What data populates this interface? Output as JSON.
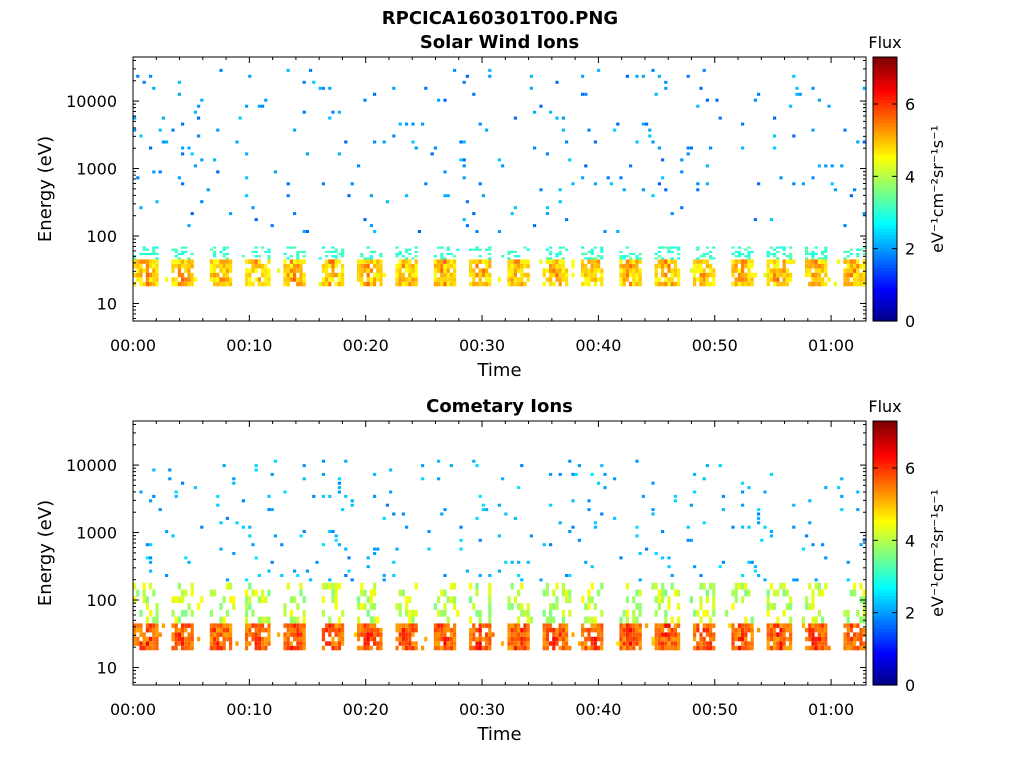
{
  "figure": {
    "title": "RPCICA160301T00.PNG"
  },
  "colormap": {
    "name": "jet",
    "stops": [
      "#00007f",
      "#0000ff",
      "#007fff",
      "#00ffff",
      "#7fff7f",
      "#ffff00",
      "#ff7f00",
      "#ff0000",
      "#7f0000"
    ]
  },
  "chart_data": [
    {
      "type": "heatmap",
      "title": "Solar Wind Ions",
      "xlabel": "Time",
      "ylabel": "Energy (eV)",
      "x_ticks": [
        "00:00",
        "00:10",
        "00:20",
        "00:30",
        "00:40",
        "00:50",
        "01:00"
      ],
      "x_tick_minutes": [
        0,
        10,
        20,
        30,
        40,
        50,
        60
      ],
      "xlim_minutes": [
        0,
        63
      ],
      "y_scale": "log",
      "y_ticks": [
        "10",
        "100",
        "1000",
        "10000"
      ],
      "y_tick_values": [
        10,
        100,
        1000,
        10000
      ],
      "ylim": [
        5.5,
        45000
      ],
      "colorbar": {
        "title": "Flux",
        "label": "eV⁻¹cm⁻²sr⁻¹s⁻¹",
        "ticks": [
          "0",
          "2",
          "4",
          "6"
        ],
        "range": [
          0,
          7.3
        ]
      },
      "sweep_period_minutes": 3.2,
      "bands": [
        {
          "energy_low": 18,
          "energy_high": 45,
          "flux_typical": 4.5,
          "flux_peak": 5.8,
          "description": "main solar wind band, periodic bursts"
        },
        {
          "energy_low": 45,
          "energy_high": 70,
          "flux_typical": 2.8,
          "flux_peak": 3.4
        },
        {
          "energy_low": 100,
          "energy_high": 30000,
          "flux_typical": 1.6,
          "flux_peak": 2.4,
          "description": "sparse scattered counts"
        }
      ]
    },
    {
      "type": "heatmap",
      "title": "Cometary Ions",
      "xlabel": "Time",
      "ylabel": "Energy (eV)",
      "x_ticks": [
        "00:00",
        "00:10",
        "00:20",
        "00:30",
        "00:40",
        "00:50",
        "01:00"
      ],
      "x_tick_minutes": [
        0,
        10,
        20,
        30,
        40,
        50,
        60
      ],
      "xlim_minutes": [
        0,
        63
      ],
      "y_scale": "log",
      "y_ticks": [
        "10",
        "100",
        "1000",
        "10000"
      ],
      "y_tick_values": [
        10,
        100,
        1000,
        10000
      ],
      "ylim": [
        5.5,
        45000
      ],
      "colorbar": {
        "title": "Flux",
        "label": "eV⁻¹cm⁻²sr⁻¹s⁻¹",
        "ticks": [
          "0",
          "2",
          "4",
          "6"
        ],
        "range": [
          0,
          7.3
        ]
      },
      "sweep_period_minutes": 3.2,
      "bands": [
        {
          "energy_low": 18,
          "energy_high": 45,
          "flux_typical": 5.2,
          "flux_peak": 6.6,
          "description": "main cometary ion band, periodic bursts"
        },
        {
          "energy_low": 45,
          "energy_high": 180,
          "flux_typical": 3.6,
          "flux_peak": 4.6
        },
        {
          "energy_low": 180,
          "energy_high": 12000,
          "flux_typical": 1.8,
          "flux_peak": 2.6,
          "description": "sparse scattered counts"
        }
      ]
    }
  ]
}
